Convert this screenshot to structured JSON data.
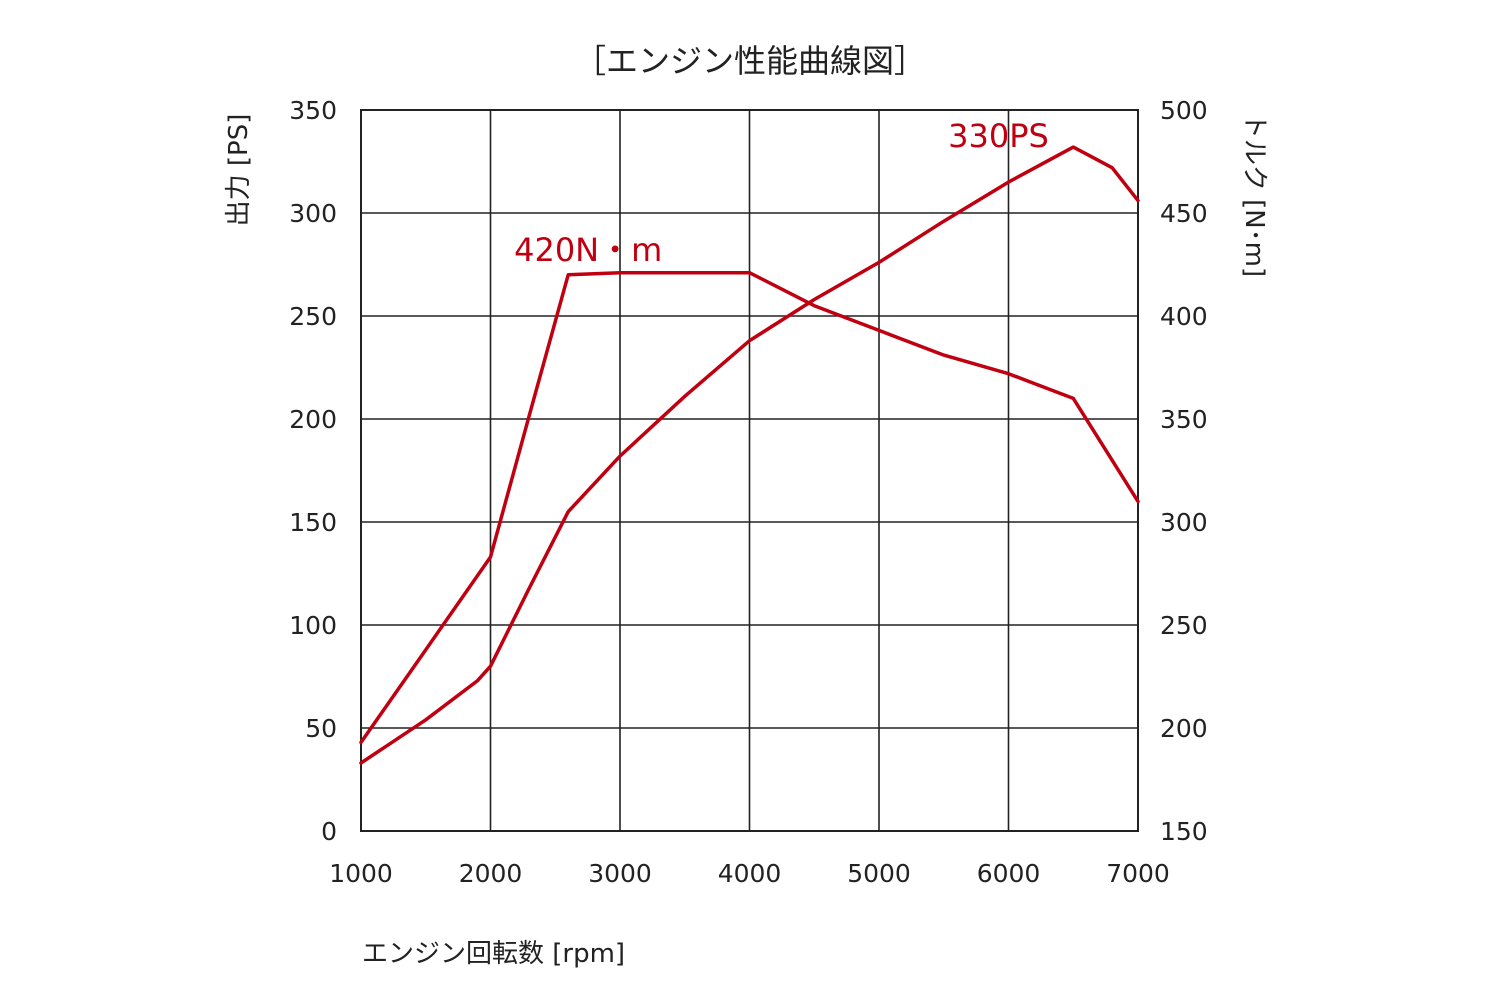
{
  "chart_data": {
    "type": "line",
    "title": "［エンジン性能曲線図］",
    "xlabel": "エンジン回転数 [rpm]",
    "ylabel_left": "出力 [PS]",
    "ylabel_right": "トルク [N･m]",
    "xlim": [
      1000,
      7000
    ],
    "ylim_left": [
      0,
      350
    ],
    "ylim_right": [
      150,
      500
    ],
    "x_ticks": [
      "1000",
      "2000",
      "3000",
      "4000",
      "5000",
      "6000",
      "7000"
    ],
    "y_left_ticks": [
      "0",
      "50",
      "100",
      "150",
      "200",
      "250",
      "300",
      "350"
    ],
    "y_right_ticks": [
      "150",
      "200",
      "250",
      "300",
      "350",
      "400",
      "450",
      "500"
    ],
    "grid": true,
    "series": [
      {
        "axis": "left",
        "color": "#c00010",
        "points": [
          [
            1000,
            33
          ],
          [
            1500,
            54
          ],
          [
            1900,
            73
          ],
          [
            2000,
            80
          ],
          [
            2300,
            118
          ],
          [
            2600,
            155
          ],
          [
            3000,
            182
          ],
          [
            3500,
            211
          ],
          [
            4000,
            238
          ],
          [
            4500,
            258
          ],
          [
            5000,
            276
          ],
          [
            5500,
            296
          ],
          [
            6000,
            315
          ],
          [
            6500,
            332
          ],
          [
            6800,
            322
          ],
          [
            7000,
            306
          ]
        ]
      },
      {
        "axis": "right",
        "color": "#c00010",
        "points": [
          [
            1000,
            193
          ],
          [
            1500,
            238
          ],
          [
            2000,
            283
          ],
          [
            2300,
            352
          ],
          [
            2600,
            420
          ],
          [
            3000,
            421
          ],
          [
            4000,
            421
          ],
          [
            4500,
            405
          ],
          [
            5000,
            393
          ],
          [
            5500,
            381
          ],
          [
            6000,
            372
          ],
          [
            6500,
            360
          ],
          [
            7000,
            310
          ]
        ]
      }
    ],
    "annotations": [
      {
        "text": "420N・m",
        "x": 2600,
        "y": 420,
        "axis": "right"
      },
      {
        "text": "330PS",
        "x": 6000,
        "y": 332,
        "axis": "left"
      }
    ]
  }
}
